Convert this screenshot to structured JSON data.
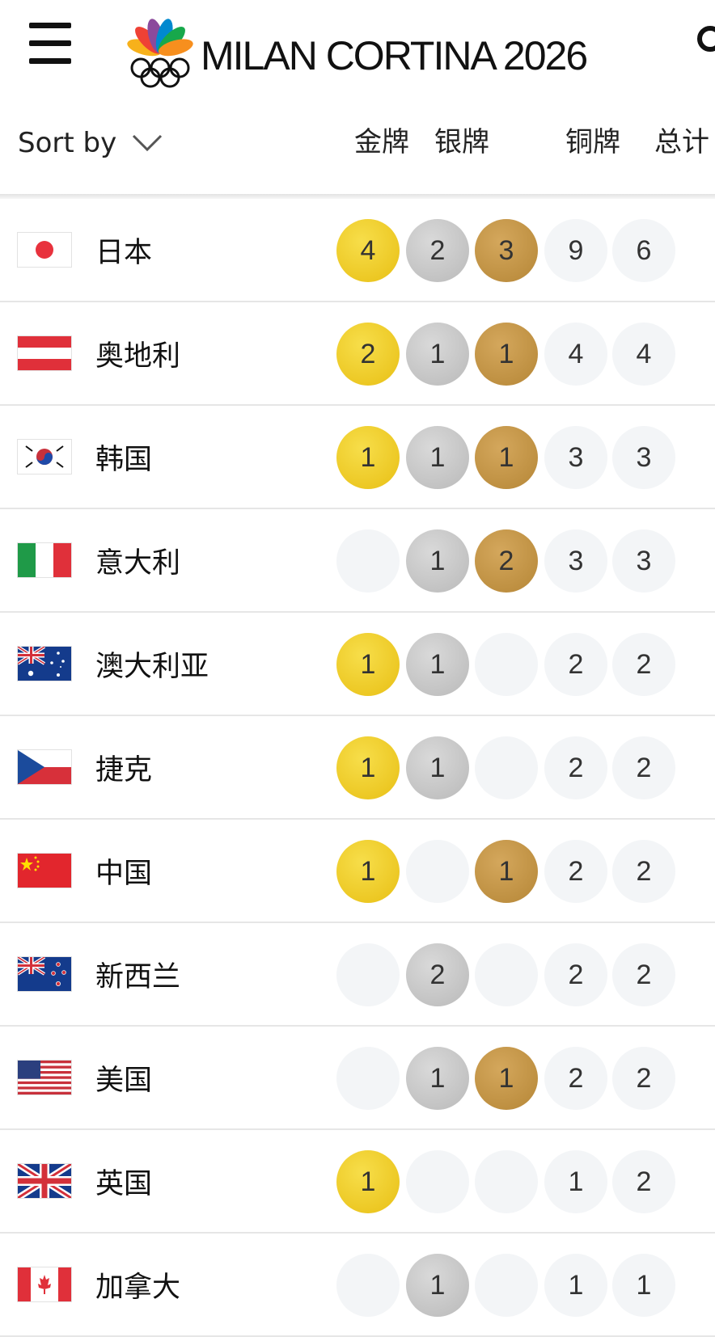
{
  "app": {
    "logo_text": "MILAN CORTINA 2026"
  },
  "sort": {
    "label": "Sort by"
  },
  "columns": [
    "金牌",
    "银牌",
    "铜牌",
    "总计"
  ],
  "colors": {
    "gold": "#e8bf14",
    "silver": "#bdbdbd",
    "bronze": "#b88a3a",
    "empty": "#f3f5f7"
  },
  "rows": [
    {
      "country": "日本",
      "flag": "japan-flag",
      "cells": [
        "4",
        "2",
        "3",
        "9",
        "6"
      ]
    },
    {
      "country": "奥地利",
      "flag": "austria-flag",
      "cells": [
        "2",
        "1",
        "1",
        "4",
        "4"
      ]
    },
    {
      "country": "韩国",
      "flag": "south-korea-flag",
      "cells": [
        "1",
        "1",
        "1",
        "3",
        "3"
      ]
    },
    {
      "country": "意大利",
      "flag": "italy-flag",
      "cells": [
        "",
        "1",
        "2",
        "3",
        "3"
      ]
    },
    {
      "country": "澳大利亚",
      "flag": "australia-flag",
      "cells": [
        "1",
        "1",
        "",
        "2",
        "2"
      ]
    },
    {
      "country": "捷克",
      "flag": "czechia-flag",
      "cells": [
        "1",
        "1",
        "",
        "2",
        "2"
      ]
    },
    {
      "country": "中国",
      "flag": "china-flag",
      "cells": [
        "1",
        "",
        "1",
        "2",
        "2"
      ]
    },
    {
      "country": "新西兰",
      "flag": "new-zealand-flag",
      "cells": [
        "",
        "2",
        "",
        "2",
        "2"
      ]
    },
    {
      "country": "美国",
      "flag": "usa-flag",
      "cells": [
        "",
        "1",
        "1",
        "2",
        "2"
      ]
    },
    {
      "country": "英国",
      "flag": "uk-flag",
      "cells": [
        "1",
        "",
        "",
        "1",
        "2"
      ]
    },
    {
      "country": "加拿大",
      "flag": "canada-flag",
      "cells": [
        "",
        "1",
        "",
        "1",
        "1"
      ]
    }
  ]
}
